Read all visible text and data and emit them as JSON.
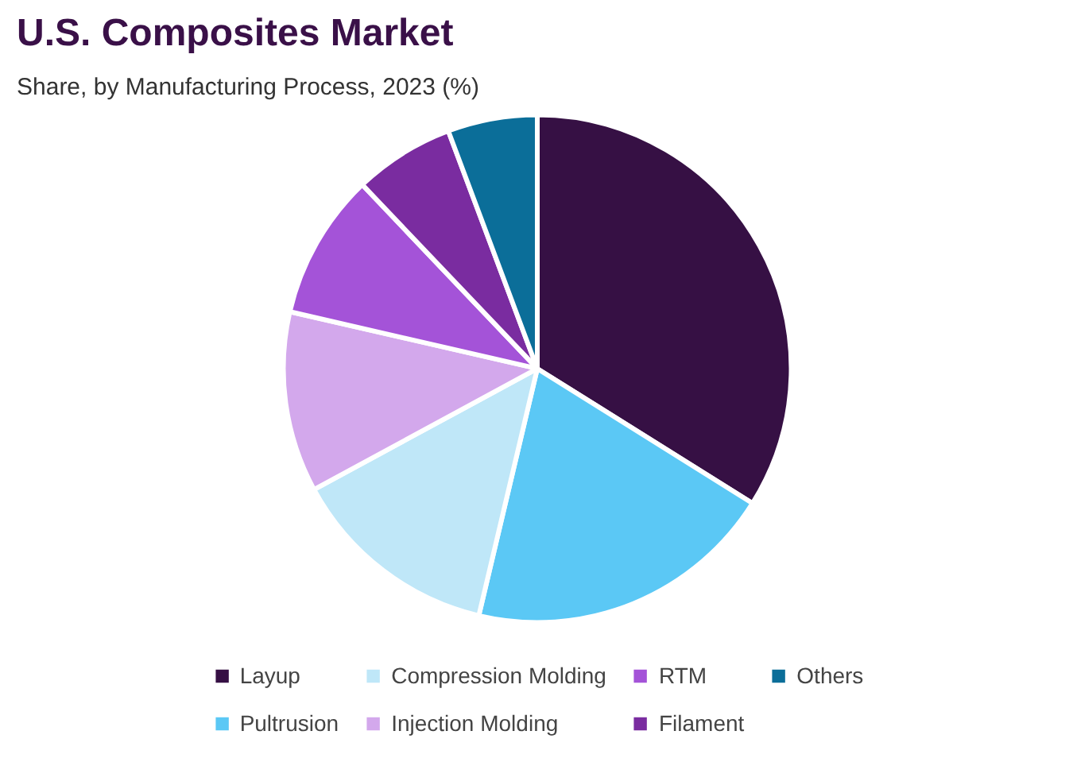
{
  "chart_data": {
    "type": "pie",
    "title": "U.S. Composites Market",
    "subtitle": "Share, by Manufacturing Process, 2023 (%)",
    "categories": [
      "Layup",
      "Pultrusion",
      "Compression Molding",
      "Injection Molding",
      "RTM",
      "Filament",
      "Others"
    ],
    "values": [
      33.9,
      19.8,
      13.4,
      11.5,
      9.3,
      6.4,
      5.7
    ],
    "colors": [
      "#361044",
      "#5bc8f5",
      "#bfe7f8",
      "#d3a8ec",
      "#a453d8",
      "#7a2ca0",
      "#0b6e99"
    ],
    "legend": "bottom"
  }
}
